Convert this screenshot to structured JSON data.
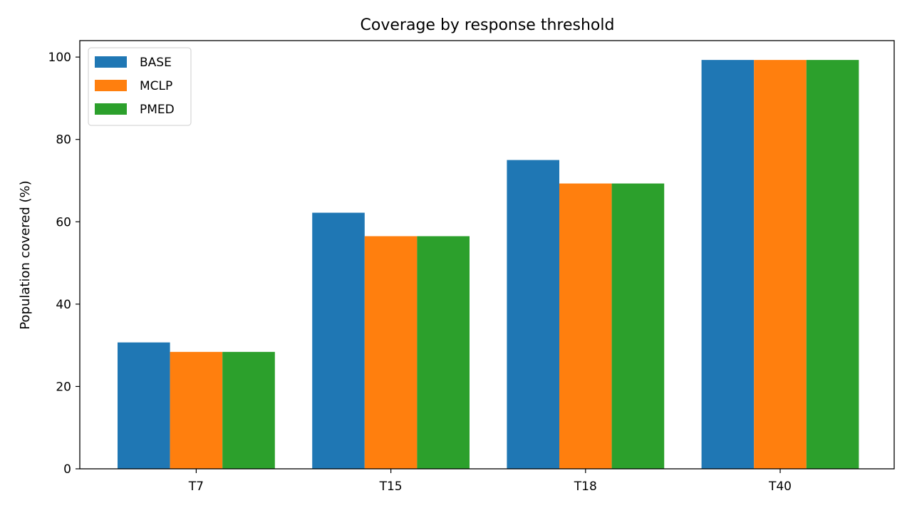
{
  "chart_data": {
    "type": "bar",
    "title": "Coverage by response threshold",
    "xlabel": "",
    "ylabel": "Population covered (%)",
    "categories": [
      "T7",
      "T15",
      "T18",
      "T40"
    ],
    "series": [
      {
        "name": "BASE",
        "color": "#1f77b4",
        "values": [
          30.7,
          62.2,
          75.0,
          99.3
        ]
      },
      {
        "name": "MCLP",
        "color": "#ff7f0e",
        "values": [
          28.4,
          56.5,
          69.3,
          99.3
        ]
      },
      {
        "name": "PMED",
        "color": "#2ca02c",
        "values": [
          28.4,
          56.5,
          69.3,
          99.3
        ]
      }
    ],
    "ylim": [
      0,
      104
    ],
    "yticks": [
      0,
      20,
      40,
      60,
      80,
      100
    ],
    "grid": false,
    "legend": "upper-left"
  }
}
